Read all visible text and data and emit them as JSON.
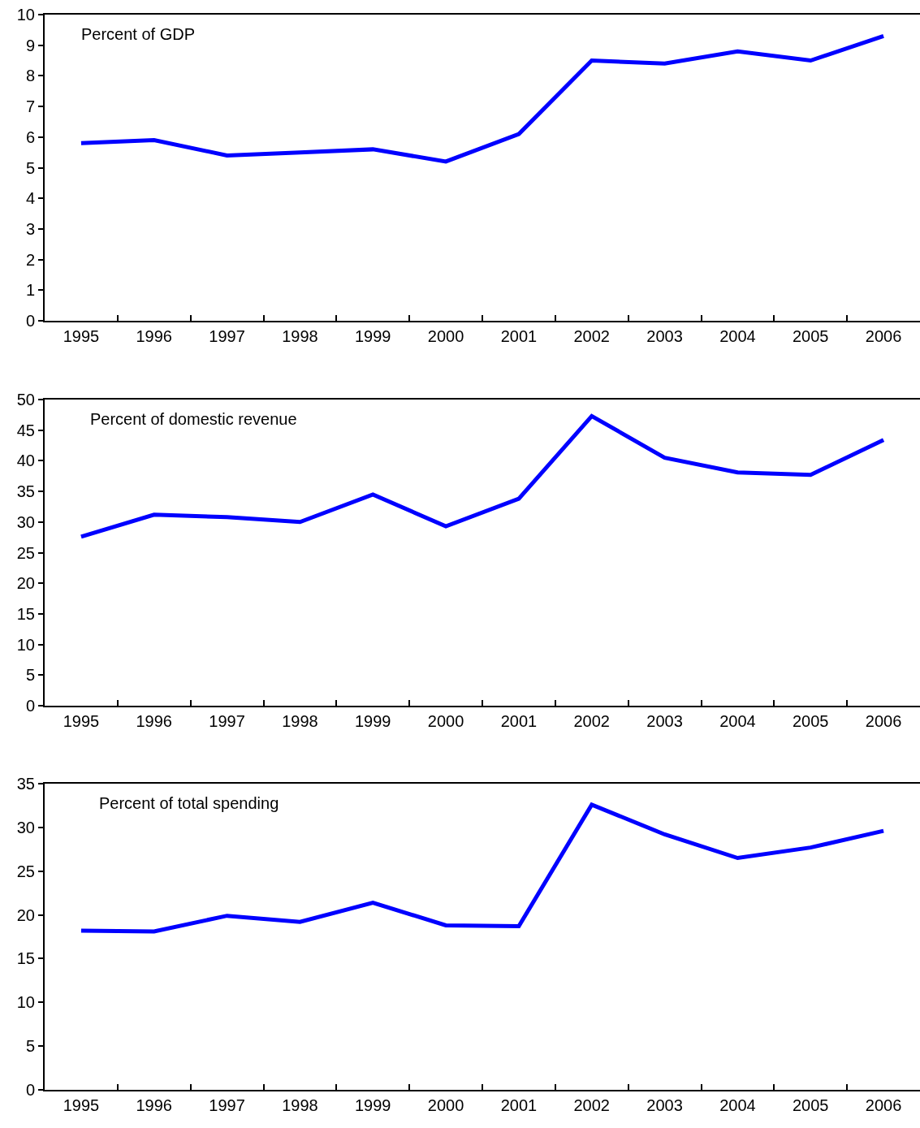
{
  "chart_data": [
    {
      "type": "line",
      "title": "Percent of GDP",
      "categories": [
        "1995",
        "1996",
        "1997",
        "1998",
        "1999",
        "2000",
        "2001",
        "2002",
        "2003",
        "2004",
        "2005",
        "2006"
      ],
      "series": [
        {
          "color": "#0000ff",
          "values": [
            5.8,
            5.9,
            5.4,
            5.5,
            5.6,
            5.2,
            6.1,
            8.5,
            8.4,
            8.8,
            8.5,
            9.3
          ]
        }
      ],
      "ylim": [
        0,
        10
      ],
      "yticks": [
        0,
        1,
        2,
        3,
        4,
        5,
        6,
        7,
        8,
        9,
        10
      ],
      "grid": false
    },
    {
      "type": "line",
      "title": "Percent of domestic revenue",
      "categories": [
        "1995",
        "1996",
        "1997",
        "1998",
        "1999",
        "2000",
        "2001",
        "2002",
        "2003",
        "2004",
        "2005",
        "2006"
      ],
      "series": [
        {
          "color": "#0000ff",
          "values": [
            27.6,
            31.2,
            30.8,
            30.0,
            34.5,
            29.3,
            33.8,
            47.3,
            40.5,
            38.1,
            37.7,
            43.4
          ]
        }
      ],
      "ylim": [
        0,
        50
      ],
      "yticks": [
        0,
        5,
        10,
        15,
        20,
        25,
        30,
        35,
        40,
        45,
        50
      ],
      "grid": false
    },
    {
      "type": "line",
      "title": "Percent of total spending",
      "categories": [
        "1995",
        "1996",
        "1997",
        "1998",
        "1999",
        "2000",
        "2001",
        "2002",
        "2003",
        "2004",
        "2005",
        "2006"
      ],
      "series": [
        {
          "color": "#0000ff",
          "values": [
            18.2,
            18.1,
            19.9,
            19.2,
            21.4,
            18.8,
            18.7,
            32.6,
            29.2,
            26.5,
            27.7,
            29.6
          ]
        }
      ],
      "ylim": [
        0,
        35
      ],
      "yticks": [
        0,
        5,
        10,
        15,
        20,
        25,
        30,
        35
      ],
      "grid": false
    }
  ]
}
